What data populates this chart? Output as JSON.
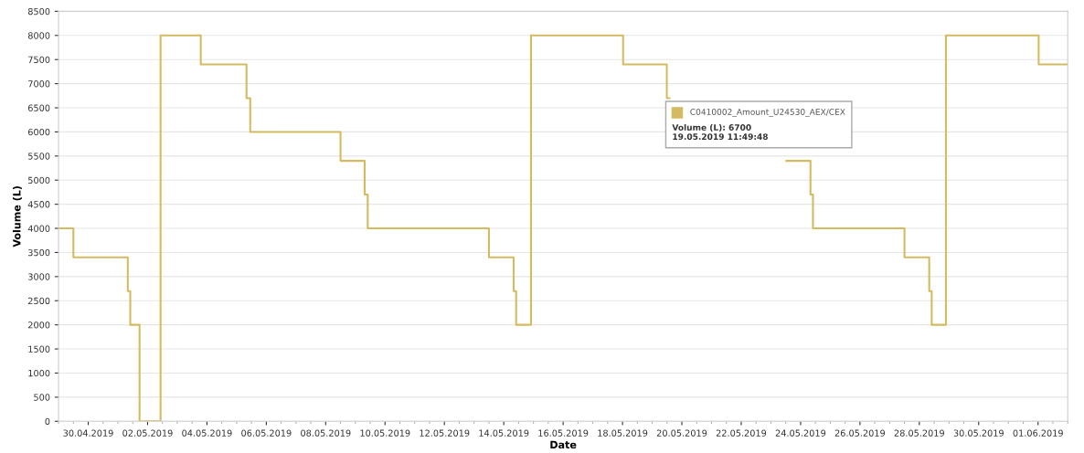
{
  "chart_data": {
    "type": "step",
    "xlabel": "Date",
    "ylabel": "Volume (L)",
    "x": [
      "2019-04-29T00:00",
      "2019-04-29T12:00",
      "2019-05-01T08:00",
      "2019-05-01T10:00",
      "2019-05-01T17:30",
      "2019-05-02T10:30",
      "2019-05-03T19:00",
      "2019-05-05T08:00",
      "2019-05-05T11:00",
      "2019-05-08T12:00",
      "2019-05-09T07:30",
      "2019-05-09T10:00",
      "2019-05-13T12:00",
      "2019-05-14T08:00",
      "2019-05-14T10:00",
      "2019-05-14T22:00",
      "2019-05-18T00:30",
      "2019-05-19T11:49",
      "2019-05-19T14:00",
      "2019-05-23T12:30",
      "2019-05-24T08:00",
      "2019-05-24T10:00",
      "2019-05-27T12:00",
      "2019-05-28T08:00",
      "2019-05-28T10:00",
      "2019-05-28T21:30",
      "2019-06-01T00:30",
      "2019-06-02T00:00"
    ],
    "series": [
      {
        "name": "C0410002_Amount_U24530_AEX/CEX",
        "color": "#d4bb62",
        "values": [
          4000,
          3400,
          2700,
          2000,
          0,
          8000,
          7400,
          6700,
          6000,
          5400,
          4700,
          4000,
          3400,
          2700,
          2000,
          8000,
          7400,
          6700,
          null,
          5400,
          4700,
          4000,
          3400,
          2700,
          2000,
          8000,
          7400,
          7400
        ]
      }
    ],
    "xlim": [
      "2019-04-29T00:00",
      "2019-06-02T00:00"
    ],
    "xticks": [
      {
        "value": "2019-04-30",
        "label": "30.04.2019"
      },
      {
        "value": "2019-05-02",
        "label": "02.05.2019"
      },
      {
        "value": "2019-05-04",
        "label": "04.05.2019"
      },
      {
        "value": "2019-05-06",
        "label": "06.05.2019"
      },
      {
        "value": "2019-05-08",
        "label": "08.05.2019"
      },
      {
        "value": "2019-05-10",
        "label": "10.05.2019"
      },
      {
        "value": "2019-05-12",
        "label": "12.05.2019"
      },
      {
        "value": "2019-05-14",
        "label": "14.05.2019"
      },
      {
        "value": "2019-05-16",
        "label": "16.05.2019"
      },
      {
        "value": "2019-05-18",
        "label": "18.05.2019"
      },
      {
        "value": "2019-05-20",
        "label": "20.05.2019"
      },
      {
        "value": "2019-05-22",
        "label": "22.05.2019"
      },
      {
        "value": "2019-05-24",
        "label": "24.05.2019"
      },
      {
        "value": "2019-05-26",
        "label": "26.05.2019"
      },
      {
        "value": "2019-05-28",
        "label": "28.05.2019"
      },
      {
        "value": "2019-05-30",
        "label": "30.05.2019"
      },
      {
        "value": "2019-06-01",
        "label": "01.06.2019"
      }
    ],
    "ylim": [
      0,
      8500
    ],
    "yticks": [
      0,
      500,
      1000,
      1500,
      2000,
      2500,
      3000,
      3500,
      4000,
      4500,
      5000,
      5500,
      6000,
      6500,
      7000,
      7500,
      8000,
      8500
    ],
    "grid": "y",
    "annotations": [
      "Volume (L): 6700\n19.05.2019 11:49:48"
    ]
  }
}
